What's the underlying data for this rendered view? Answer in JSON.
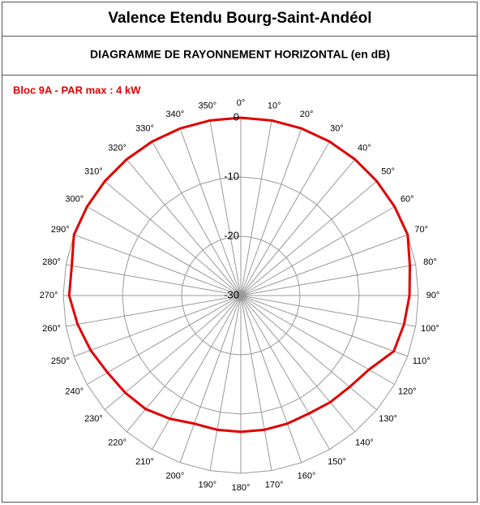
{
  "chart_data": {
    "type": "radar",
    "title": "Valence Etendu Bourg-Saint-Andéol",
    "subtitle": "DIAGRAMME DE RAYONNEMENT HORIZONTAL  (en dB)",
    "categories": [
      "0°",
      "10°",
      "20°",
      "30°",
      "40°",
      "50°",
      "60°",
      "70°",
      "80°",
      "90°",
      "100°",
      "110°",
      "120°",
      "130°",
      "140°",
      "150°",
      "160°",
      "170°",
      "180°",
      "190°",
      "200°",
      "210°",
      "220°",
      "230°",
      "240°",
      "250°",
      "260°",
      "270°",
      "280°",
      "290°",
      "300°",
      "310°",
      "320°",
      "330°",
      "340°",
      "350°"
    ],
    "series": [
      {
        "name": "Bloc 9A - PAR max : 4 kW",
        "color": "#e00000",
        "values": [
          0,
          0,
          0,
          0,
          0,
          0,
          0,
          0,
          -1,
          -1.5,
          -2,
          -2.5,
          -5,
          -6,
          -6.5,
          -7,
          -7,
          -7,
          -7,
          -7,
          -7,
          -6,
          -5,
          -4.5,
          -4,
          -3,
          -2,
          -1,
          -1,
          0,
          0,
          0,
          0,
          0,
          0,
          0
        ]
      }
    ],
    "rlim": [
      -30,
      0
    ],
    "rticks": [
      0,
      -10,
      -20,
      -30
    ],
    "grid": true
  }
}
